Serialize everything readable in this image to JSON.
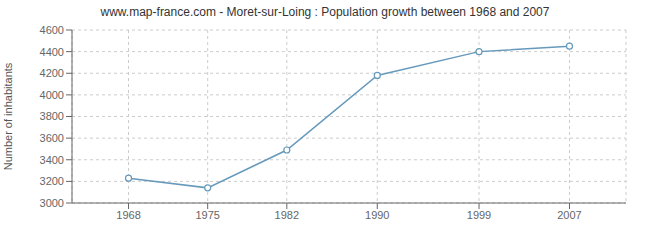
{
  "chart_data": {
    "type": "line",
    "title": "www.map-france.com - Moret-sur-Loing : Population growth between 1968 and 2007",
    "ylabel": "Number of inhabitants",
    "x": [
      1968,
      1975,
      1982,
      1990,
      1999,
      2007
    ],
    "values": [
      3230,
      3140,
      3490,
      4180,
      4400,
      4450
    ],
    "xlim": [
      1963,
      2012
    ],
    "xticks": [
      1968,
      1975,
      1982,
      1990,
      1999,
      2007
    ],
    "ylim": [
      3000,
      4600
    ],
    "yticks": [
      3000,
      3200,
      3400,
      3600,
      3800,
      4000,
      4200,
      4400,
      4600
    ],
    "color": "#6699bb",
    "marker": "circle",
    "grid": true
  }
}
